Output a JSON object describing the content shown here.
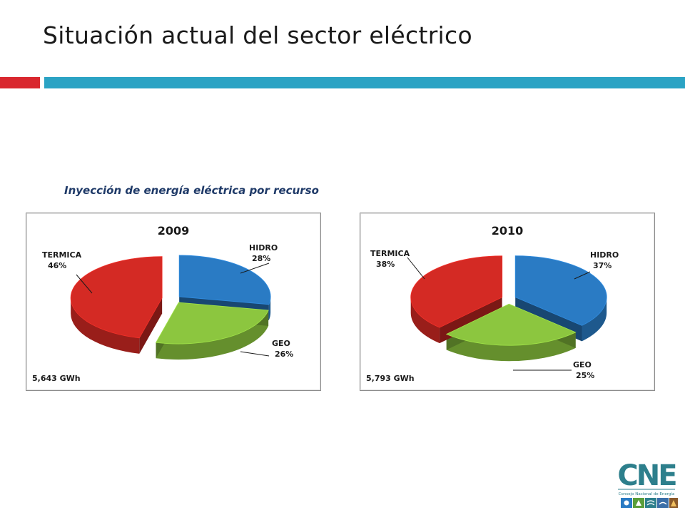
{
  "page": {
    "title": "Situación actual del sector eléctrico",
    "subtitle": "Inyección de energía eléctrica por recurso"
  },
  "colors": {
    "hidro": "#2a7bc4",
    "geo": "#8cc63f",
    "termica": "#d42a24",
    "bar_red": "#d9272e",
    "bar_blue": "#2ba3c4"
  },
  "chart_data": [
    {
      "type": "pie",
      "title": "2009",
      "total_label": "5,643 GWh",
      "slices": [
        {
          "label": "HIDRO",
          "value": 28,
          "value_label": "28%",
          "color": "#2a7bc4"
        },
        {
          "label": "GEO",
          "value": 26,
          "value_label": "26%",
          "color": "#8cc63f"
        },
        {
          "label": "TERMICA",
          "value": 46,
          "value_label": "46%",
          "color": "#d42a24"
        }
      ]
    },
    {
      "type": "pie",
      "title": "2010",
      "total_label": "5,793 GWh",
      "slices": [
        {
          "label": "HIDRO",
          "value": 37,
          "value_label": "37%",
          "color": "#2a7bc4"
        },
        {
          "label": "GEO",
          "value": 25,
          "value_label": "25%",
          "color": "#8cc63f"
        },
        {
          "label": "TERMICA",
          "value": 38,
          "value_label": "38%",
          "color": "#d42a24"
        }
      ]
    }
  ],
  "logo": {
    "wordmark": "CNE",
    "caption": "Consejo Nacional de Energía"
  }
}
